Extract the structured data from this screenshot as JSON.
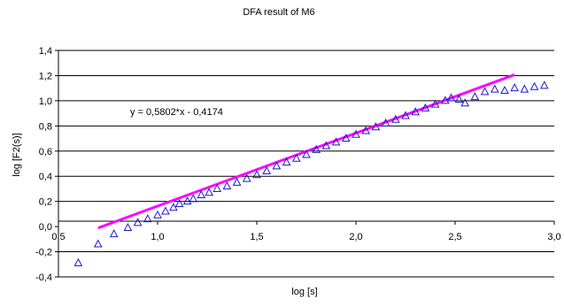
{
  "chart_data": {
    "type": "scatter",
    "title": "DFA result of M6",
    "xlabel": "log [s]",
    "ylabel": "log [F2(s)]",
    "xlim": [
      0.5,
      3.0
    ],
    "ylim": [
      -0.4,
      1.4
    ],
    "xticks": [
      "0,5",
      "1,0",
      "1,5",
      "2,0",
      "2,5",
      "3,0"
    ],
    "yticks": [
      "-0,4",
      "-0,2",
      "0,0",
      "0,2",
      "0,4",
      "0,6",
      "0,8",
      "1,0",
      "1,2",
      "1,4"
    ],
    "grid": "horizontal",
    "legend": "none",
    "colors": {
      "points": "#1a1acc",
      "fit": "#ff00ff",
      "grid": "#000000"
    },
    "series": [
      {
        "marker": "open-triangle",
        "x": [
          0.6,
          0.7,
          0.78,
          0.85,
          0.9,
          0.95,
          1.0,
          1.04,
          1.08,
          1.11,
          1.15,
          1.18,
          1.22,
          1.26,
          1.3,
          1.35,
          1.4,
          1.45,
          1.5,
          1.55,
          1.6,
          1.65,
          1.7,
          1.75,
          1.8,
          1.85,
          1.9,
          1.95,
          2.0,
          2.05,
          2.1,
          2.15,
          2.2,
          2.25,
          2.3,
          2.35,
          2.4,
          2.45,
          2.48,
          2.52,
          2.55,
          2.6,
          2.65,
          2.7,
          2.75,
          2.8,
          2.85,
          2.9,
          2.95
        ],
        "y": [
          -0.29,
          -0.14,
          -0.06,
          -0.01,
          0.03,
          0.06,
          0.09,
          0.12,
          0.15,
          0.18,
          0.2,
          0.22,
          0.25,
          0.27,
          0.3,
          0.32,
          0.35,
          0.38,
          0.41,
          0.44,
          0.48,
          0.51,
          0.54,
          0.57,
          0.61,
          0.64,
          0.67,
          0.7,
          0.73,
          0.76,
          0.79,
          0.82,
          0.85,
          0.88,
          0.91,
          0.94,
          0.97,
          1.0,
          1.02,
          1.01,
          0.98,
          1.03,
          1.07,
          1.09,
          1.08,
          1.1,
          1.09,
          1.11,
          1.12
        ]
      },
      {
        "type": "line",
        "equation": "y = 0,5802*x - 0,4174",
        "x": [
          0.7,
          2.8
        ],
        "y": [
          -0.011,
          1.207
        ]
      }
    ]
  }
}
